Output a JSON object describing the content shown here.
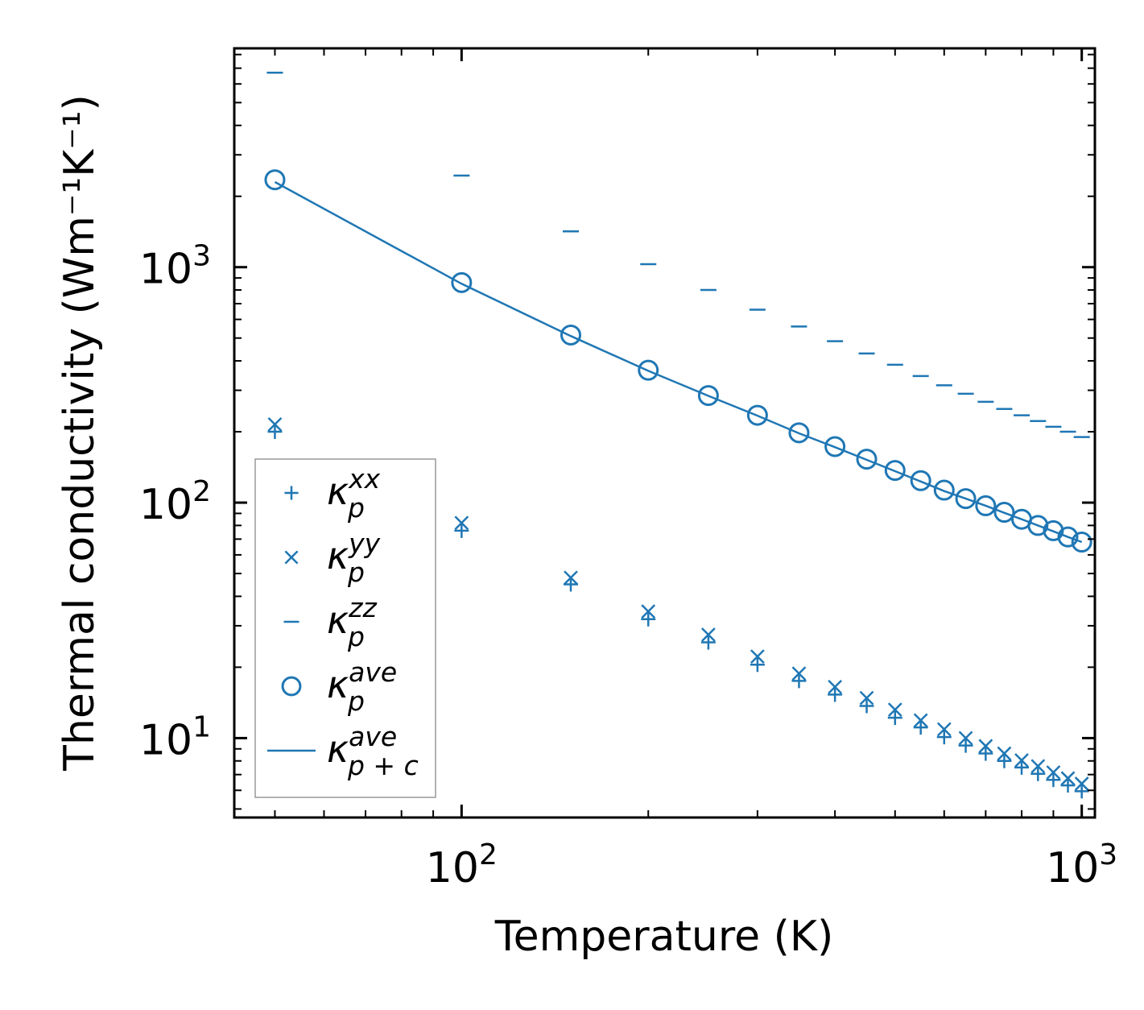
{
  "chart_data": {
    "type": "scatter",
    "title": "",
    "xlabel": "Temperature (K)",
    "ylabel": "Thermal conductivity (Wm⁻¹K⁻¹)",
    "xscale": "log",
    "yscale": "log",
    "xlim": [
      43,
      1050
    ],
    "ylim": [
      4.6,
      8500
    ],
    "grid": false,
    "legend_position": "lower-left",
    "x": [
      50,
      100,
      150,
      200,
      250,
      300,
      350,
      400,
      450,
      500,
      550,
      600,
      650,
      700,
      750,
      800,
      850,
      900,
      950,
      1000
    ],
    "series": [
      {
        "name": "kappa_p^xx",
        "marker": "plus",
        "values": [
          200,
          76,
          45,
          32,
          25.5,
          20.5,
          17.5,
          15.3,
          13.7,
          12.2,
          11.1,
          10.1,
          9.3,
          8.6,
          8.0,
          7.5,
          7.05,
          6.65,
          6.3,
          5.95
        ]
      },
      {
        "name": "kappa_p^yy",
        "marker": "x",
        "values": [
          215,
          82,
          48,
          34.5,
          27.5,
          22.2,
          18.8,
          16.5,
          14.8,
          13.2,
          11.9,
          10.9,
          10.0,
          9.25,
          8.6,
          8.05,
          7.6,
          7.15,
          6.75,
          6.4
        ]
      },
      {
        "name": "kappa_p^zz",
        "marker": "hline",
        "values": [
          6700,
          2450,
          1420,
          1030,
          800,
          660,
          560,
          485,
          430,
          385,
          345,
          315,
          290,
          268,
          250,
          235,
          222,
          210,
          200,
          190
        ]
      },
      {
        "name": "kappa_p^ave",
        "marker": "circle",
        "values": [
          2350,
          860,
          515,
          365,
          285,
          235,
          198,
          173,
          153,
          137,
          124,
          113,
          104,
          97,
          91,
          85,
          80,
          76,
          71.5,
          68
        ]
      },
      {
        "name": "kappa_p+c^ave",
        "marker": "line",
        "values": [
          2300,
          850,
          510,
          363,
          284,
          234,
          197,
          172,
          152,
          136,
          123,
          112,
          104,
          97,
          90.5,
          85,
          80,
          75.5,
          71.5,
          68
        ]
      }
    ],
    "x_ticks": [
      {
        "value": 100,
        "label": "10",
        "exp": "2"
      },
      {
        "value": 1000,
        "label": "10",
        "exp": "3"
      }
    ],
    "y_ticks": [
      {
        "value": 10,
        "label": "10",
        "exp": "1"
      },
      {
        "value": 100,
        "label": "10",
        "exp": "2"
      },
      {
        "value": 1000,
        "label": "10",
        "exp": "3"
      }
    ],
    "legend": [
      {
        "marker": "plus",
        "symbol": "κ",
        "sup": "xx",
        "sub": "p"
      },
      {
        "marker": "x",
        "symbol": "κ",
        "sup": "yy",
        "sub": "p"
      },
      {
        "marker": "hline",
        "symbol": "κ",
        "sup": "zz",
        "sub": "p"
      },
      {
        "marker": "circle",
        "symbol": "κ",
        "sup": "ave",
        "sub": "p"
      },
      {
        "marker": "line",
        "symbol": "κ",
        "sup": "ave",
        "sub": "p + c"
      }
    ],
    "color": "#1f77b4"
  }
}
